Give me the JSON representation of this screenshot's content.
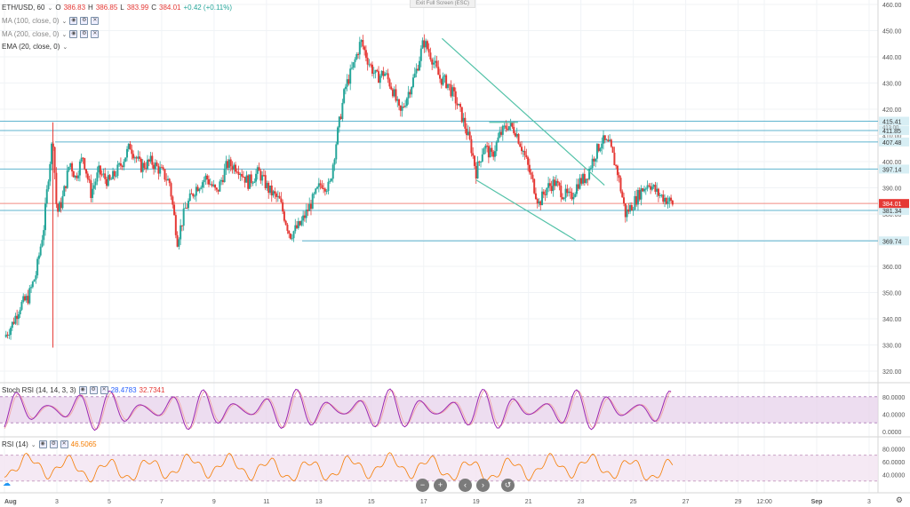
{
  "header": {
    "symbol": "ETH/USD, 60",
    "o_label": "O",
    "o_value": "386.83",
    "h_label": "H",
    "h_value": "386.85",
    "l_label": "L",
    "l_value": "383.99",
    "c_label": "C",
    "c_value": "384.01",
    "change": "+0.42 (+0.11%)"
  },
  "indicators": [
    {
      "label": "MA (100, close, 0)"
    },
    {
      "label": "MA (200, close, 0)"
    },
    {
      "label": "EMA (20, close, 0)"
    }
  ],
  "fullscreen_tip": "Exit Full Screen (ESC)",
  "stoch": {
    "label": "Stoch RSI (14, 14, 3, 3)",
    "k": "28.4783",
    "d": "32.7341",
    "ticks": [
      "80.0000",
      "40.0000",
      "0.0000"
    ]
  },
  "rsi": {
    "label": "RSI (14)",
    "value": "46.5065",
    "ticks": [
      "80.0000",
      "60.0000",
      "40.0000"
    ]
  },
  "colors": {
    "up": "#26a69a",
    "down": "#e53935",
    "hline": "#5fb4cf",
    "trend": "#53c2a8",
    "stoch": "#9c27b0",
    "rsi": "#f57c00"
  },
  "chart_data": {
    "type": "candlestick",
    "symbol": "ETH/USD",
    "interval": "60",
    "ylim": [
      320,
      460
    ],
    "price_ticks": [
      460.0,
      450.0,
      440.0,
      430.0,
      420.0,
      410.0,
      400.0,
      390.0,
      380.0,
      370.0,
      360.0,
      350.0,
      340.0,
      330.0,
      320.0
    ],
    "x_ticks": [
      "Aug",
      "3",
      "5",
      "7",
      "9",
      "11",
      "13",
      "15",
      "17",
      "19",
      "21",
      "23",
      "25",
      "27",
      "29",
      "12:00",
      "Sep",
      "3"
    ],
    "x_tick_days": [
      1,
      3,
      5,
      7,
      9,
      11,
      13,
      15,
      17,
      19,
      21,
      23,
      25,
      27,
      29,
      30,
      32,
      34
    ],
    "horizontal_levels": [
      {
        "price": 415.41,
        "label": "415.41"
      },
      {
        "price": 411.85,
        "label": "411.85"
      },
      {
        "price": 407.48,
        "label": "407.48"
      },
      {
        "price": 397.14,
        "label": "397.14"
      },
      {
        "price": 381.34,
        "label": "381.34"
      },
      {
        "price": 369.74,
        "label": "369.74"
      }
    ],
    "last_price": {
      "price": 384.01,
      "label": "384.01"
    },
    "partial_label": "413.00",
    "ohlc_path": [
      [
        1.0,
        333
      ],
      [
        1.3,
        338
      ],
      [
        1.6,
        345
      ],
      [
        1.9,
        348
      ],
      [
        2.2,
        357
      ],
      [
        2.5,
        375
      ],
      [
        2.7,
        397
      ],
      [
        2.85,
        410
      ],
      [
        3.0,
        380
      ],
      [
        3.2,
        385
      ],
      [
        3.5,
        400
      ],
      [
        3.7,
        394
      ],
      [
        4.0,
        402
      ],
      [
        4.3,
        388
      ],
      [
        4.6,
        396
      ],
      [
        5.0,
        392
      ],
      [
        5.4,
        398
      ],
      [
        5.8,
        406
      ],
      [
        6.2,
        398
      ],
      [
        6.6,
        400
      ],
      [
        7.0,
        396
      ],
      [
        7.3,
        392
      ],
      [
        7.6,
        370
      ],
      [
        7.9,
        382
      ],
      [
        8.3,
        390
      ],
      [
        8.7,
        394
      ],
      [
        9.1,
        388
      ],
      [
        9.5,
        399
      ],
      [
        9.9,
        398
      ],
      [
        10.3,
        392
      ],
      [
        10.7,
        396
      ],
      [
        11.1,
        389
      ],
      [
        11.5,
        385
      ],
      [
        11.9,
        372
      ],
      [
        12.3,
        376
      ],
      [
        12.7,
        384
      ],
      [
        13.1,
        392
      ],
      [
        13.4,
        390
      ],
      [
        13.7,
        410
      ],
      [
        14.0,
        428
      ],
      [
        14.3,
        436
      ],
      [
        14.6,
        446
      ],
      [
        14.9,
        438
      ],
      [
        15.2,
        432
      ],
      [
        15.5,
        434
      ],
      [
        15.8,
        428
      ],
      [
        16.1,
        418
      ],
      [
        16.4,
        426
      ],
      [
        16.7,
        434
      ],
      [
        17.0,
        446
      ],
      [
        17.3,
        440
      ],
      [
        17.6,
        432
      ],
      [
        17.9,
        430
      ],
      [
        18.2,
        424
      ],
      [
        18.5,
        416
      ],
      [
        18.8,
        406
      ],
      [
        19.0,
        396
      ],
      [
        19.3,
        406
      ],
      [
        19.6,
        402
      ],
      [
        19.9,
        410
      ],
      [
        20.2,
        414
      ],
      [
        20.5,
        412
      ],
      [
        20.8,
        404
      ],
      [
        21.1,
        394
      ],
      [
        21.4,
        384
      ],
      [
        21.7,
        390
      ],
      [
        22.0,
        392
      ],
      [
        22.3,
        388
      ],
      [
        22.6,
        386
      ],
      [
        22.9,
        392
      ],
      [
        23.2,
        394
      ],
      [
        23.5,
        402
      ],
      [
        23.8,
        408
      ],
      [
        24.1,
        406
      ],
      [
        24.4,
        396
      ],
      [
        24.7,
        380
      ],
      [
        25.0,
        384
      ],
      [
        25.3,
        389
      ],
      [
        25.6,
        392
      ],
      [
        25.9,
        388
      ],
      [
        26.2,
        386
      ],
      [
        26.5,
        384
      ]
    ],
    "trendlines": [
      {
        "from": [
          17.7,
          447
        ],
        "to": [
          23.9,
          391
        ]
      },
      {
        "from": [
          19.0,
          393
        ],
        "to": [
          22.8,
          370
        ]
      },
      {
        "from": [
          19.5,
          415
        ],
        "to": [
          20.6,
          415
        ]
      }
    ],
    "stoch_rsi": {
      "k": 28.4783,
      "d": 32.7341,
      "ticks": [
        0,
        40,
        80
      ]
    },
    "rsi_14": {
      "value": 46.5065,
      "ticks": [
        40,
        60,
        80
      ]
    }
  }
}
